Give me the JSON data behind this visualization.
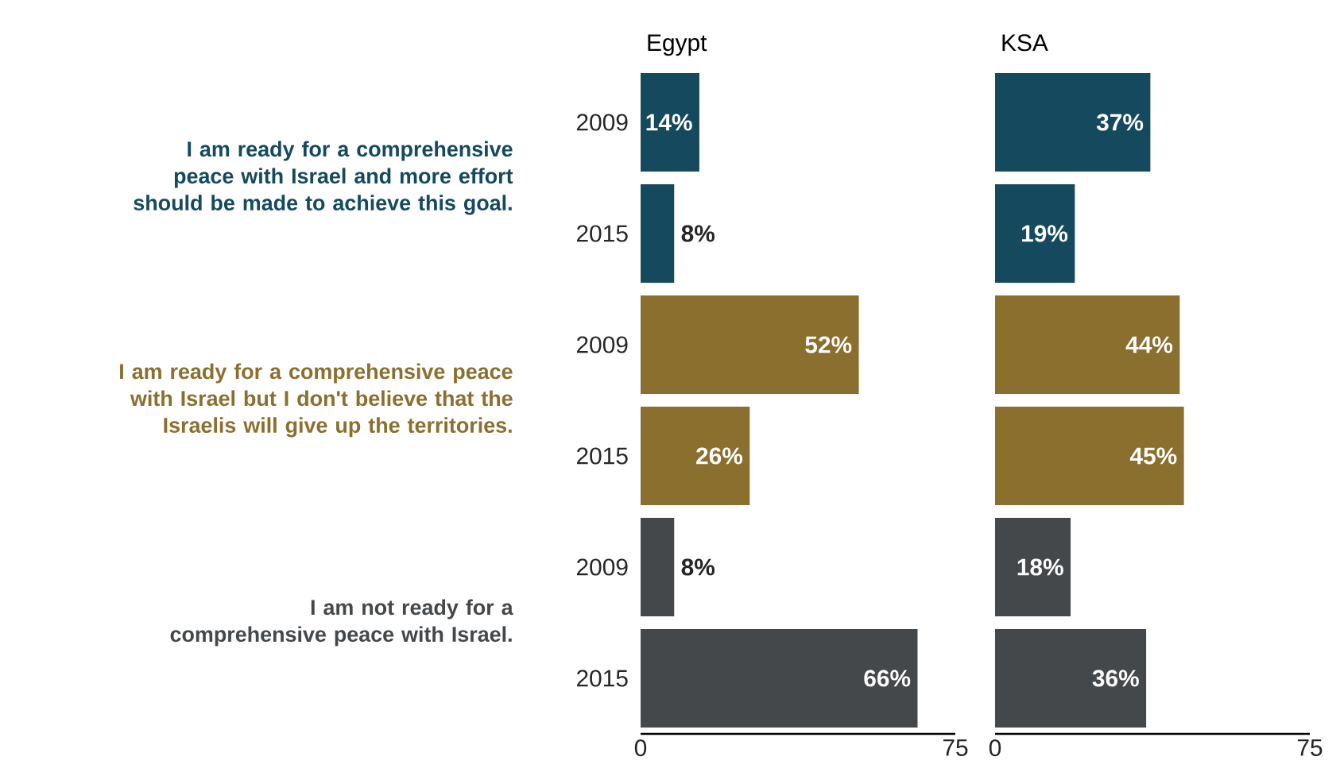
{
  "chart_data": [
    {
      "type": "bar",
      "orientation": "horizontal",
      "title": "Egypt",
      "categories": [
        "2009",
        "2015",
        "2009",
        "2015",
        "2009",
        "2015"
      ],
      "values": [
        14,
        8,
        52,
        26,
        8,
        66
      ],
      "value_labels": [
        "14%",
        "8%",
        "52%",
        "26%",
        "8%",
        "66%"
      ],
      "colors": [
        "#154a5e",
        "#154a5e",
        "#8a6f2e",
        "#8a6f2e",
        "#45484b",
        "#45484b"
      ],
      "xlim": [
        0,
        75
      ],
      "xticks": [
        0,
        75
      ],
      "annotations": [
        "I am ready for a comprehensive peace with Israel and more effort should be made to achieve this goal.",
        "I am ready for a comprehensive peace with Israel but I don't believe that the Israelis will give up the territories.",
        "I am not ready for a comprehensive peace with Israel."
      ]
    },
    {
      "type": "bar",
      "orientation": "horizontal",
      "title": "KSA",
      "categories": [
        "2009",
        "2015",
        "2009",
        "2015",
        "2009",
        "2015"
      ],
      "values": [
        37,
        19,
        44,
        45,
        18,
        36
      ],
      "value_labels": [
        "37%",
        "19%",
        "44%",
        "45%",
        "18%",
        "36%"
      ],
      "colors": [
        "#154a5e",
        "#154a5e",
        "#8a6f2e",
        "#8a6f2e",
        "#45484b",
        "#45484b"
      ],
      "xlim": [
        0,
        75
      ],
      "xticks": [
        0,
        75
      ],
      "tick_labels": "x"
    }
  ]
}
